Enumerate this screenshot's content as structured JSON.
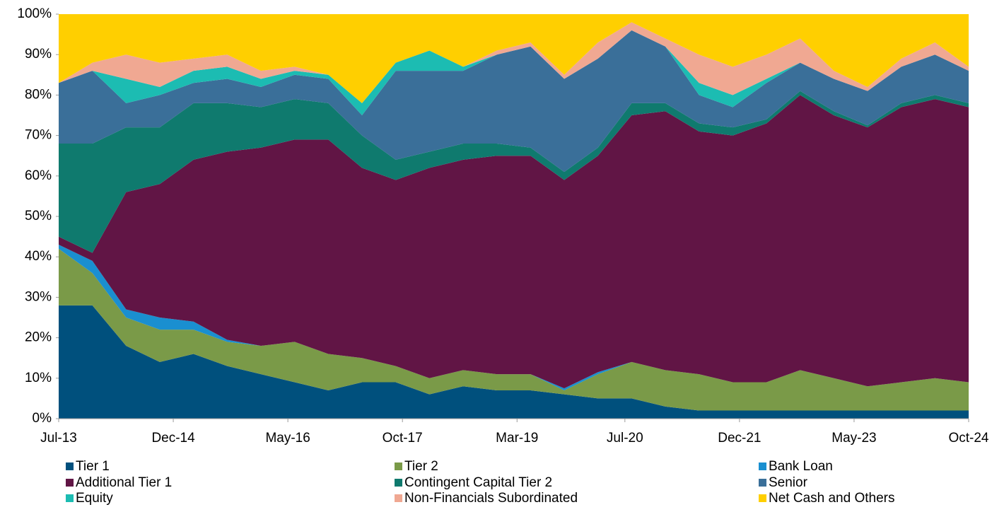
{
  "chart_data": {
    "type": "stacked_area",
    "x": [
      0,
      5,
      10,
      15,
      20,
      25,
      30,
      35,
      40,
      45,
      50,
      55,
      60,
      65,
      70,
      75,
      80,
      85,
      90,
      95,
      100,
      105,
      110,
      115,
      120,
      125,
      130,
      135
    ],
    "xlim": [
      0,
      135
    ],
    "xticks": [
      {
        "value": 0,
        "label": "Jul-13"
      },
      {
        "value": 17,
        "label": "Dec-14"
      },
      {
        "value": 34,
        "label": "May-16"
      },
      {
        "value": 51,
        "label": "Oct-17"
      },
      {
        "value": 68,
        "label": "Mar-19"
      },
      {
        "value": 84,
        "label": "Jul-20"
      },
      {
        "value": 101,
        "label": "Dec-21"
      },
      {
        "value": 118,
        "label": "May-23"
      },
      {
        "value": 135,
        "label": "Oct-24"
      }
    ],
    "ylim": [
      0,
      100
    ],
    "yticks": [
      {
        "value": 0,
        "label": "0%"
      },
      {
        "value": 10,
        "label": "10%"
      },
      {
        "value": 20,
        "label": "20%"
      },
      {
        "value": 30,
        "label": "30%"
      },
      {
        "value": 40,
        "label": "40%"
      },
      {
        "value": 50,
        "label": "50%"
      },
      {
        "value": 60,
        "label": "60%"
      },
      {
        "value": 70,
        "label": "70%"
      },
      {
        "value": 80,
        "label": "80%"
      },
      {
        "value": 90,
        "label": "90%"
      },
      {
        "value": 100,
        "label": "100%"
      }
    ],
    "grid": false,
    "legend": "bottom",
    "series": [
      {
        "name": "Tier 1",
        "color": "#00507d",
        "values": [
          28,
          28,
          18,
          14,
          16,
          13,
          11,
          9,
          7,
          9,
          9,
          6,
          8,
          7,
          7,
          6,
          5,
          5,
          3,
          2,
          2,
          2,
          2,
          2,
          2,
          2,
          2,
          2
        ]
      },
      {
        "name": "Tier 2",
        "color": "#7a9a48",
        "values": [
          14,
          8,
          7,
          8,
          6,
          6,
          7,
          10,
          9,
          6,
          4,
          4,
          4,
          4,
          4,
          1,
          6,
          9,
          9,
          9,
          7,
          7,
          10,
          8,
          6,
          7,
          8,
          7
        ]
      },
      {
        "name": "Bank Loan",
        "color": "#1a8fd0",
        "values": [
          1,
          3,
          2,
          3,
          2,
          0.5,
          0,
          0,
          0,
          0,
          0,
          0,
          0,
          0,
          0,
          0.5,
          0.5,
          0,
          0,
          0,
          0,
          0,
          0,
          0,
          0,
          0,
          0,
          0
        ]
      },
      {
        "name": "Additional Tier 1",
        "color": "#611545",
        "values": [
          2,
          2,
          29,
          33,
          40,
          46.5,
          49,
          50,
          53,
          47,
          46,
          52,
          52,
          54,
          54,
          51.5,
          53.5,
          61,
          64,
          60,
          61,
          64,
          68,
          65,
          64,
          68,
          69,
          68
        ]
      },
      {
        "name": "Contingent Capital Tier 2",
        "color": "#0f7a6e",
        "values": [
          23,
          27,
          16,
          14,
          14,
          12,
          10,
          10,
          9,
          8,
          5,
          4,
          4,
          3,
          2,
          2,
          2,
          3,
          2,
          2,
          2,
          1,
          1,
          1,
          0.5,
          1,
          1,
          1
        ]
      },
      {
        "name": "Senior",
        "color": "#3a6f99",
        "values": [
          15,
          18,
          6,
          8,
          5,
          6,
          5,
          6,
          6,
          5,
          22,
          20,
          18,
          22,
          25,
          23,
          22,
          18,
          14,
          7,
          5,
          9,
          7,
          8,
          8.5,
          9,
          10,
          8
        ]
      },
      {
        "name": "Equity",
        "color": "#1cbcb2",
        "values": [
          0,
          0,
          6,
          2,
          3,
          3,
          2,
          1,
          1,
          3,
          2,
          5,
          1,
          0,
          0,
          0,
          0,
          0,
          0,
          3,
          3,
          1,
          0,
          0,
          0,
          0,
          0,
          0
        ]
      },
      {
        "name": "Non-Financials Subordinated",
        "color": "#f0a892",
        "values": [
          0,
          2,
          6,
          6,
          3,
          3,
          2,
          1,
          0,
          0,
          0,
          0,
          0,
          1,
          1,
          1,
          4,
          2,
          2,
          7,
          7,
          6,
          6,
          2,
          1,
          2,
          3,
          1
        ]
      },
      {
        "name": "Net Cash and Others",
        "color": "#ffcf00",
        "values": [
          17,
          12,
          10,
          12,
          11,
          10,
          14,
          13,
          15,
          22,
          12,
          9,
          13,
          9,
          7,
          15,
          7,
          2,
          6,
          10,
          13,
          10,
          6,
          14,
          18,
          11,
          7,
          13
        ]
      }
    ]
  }
}
